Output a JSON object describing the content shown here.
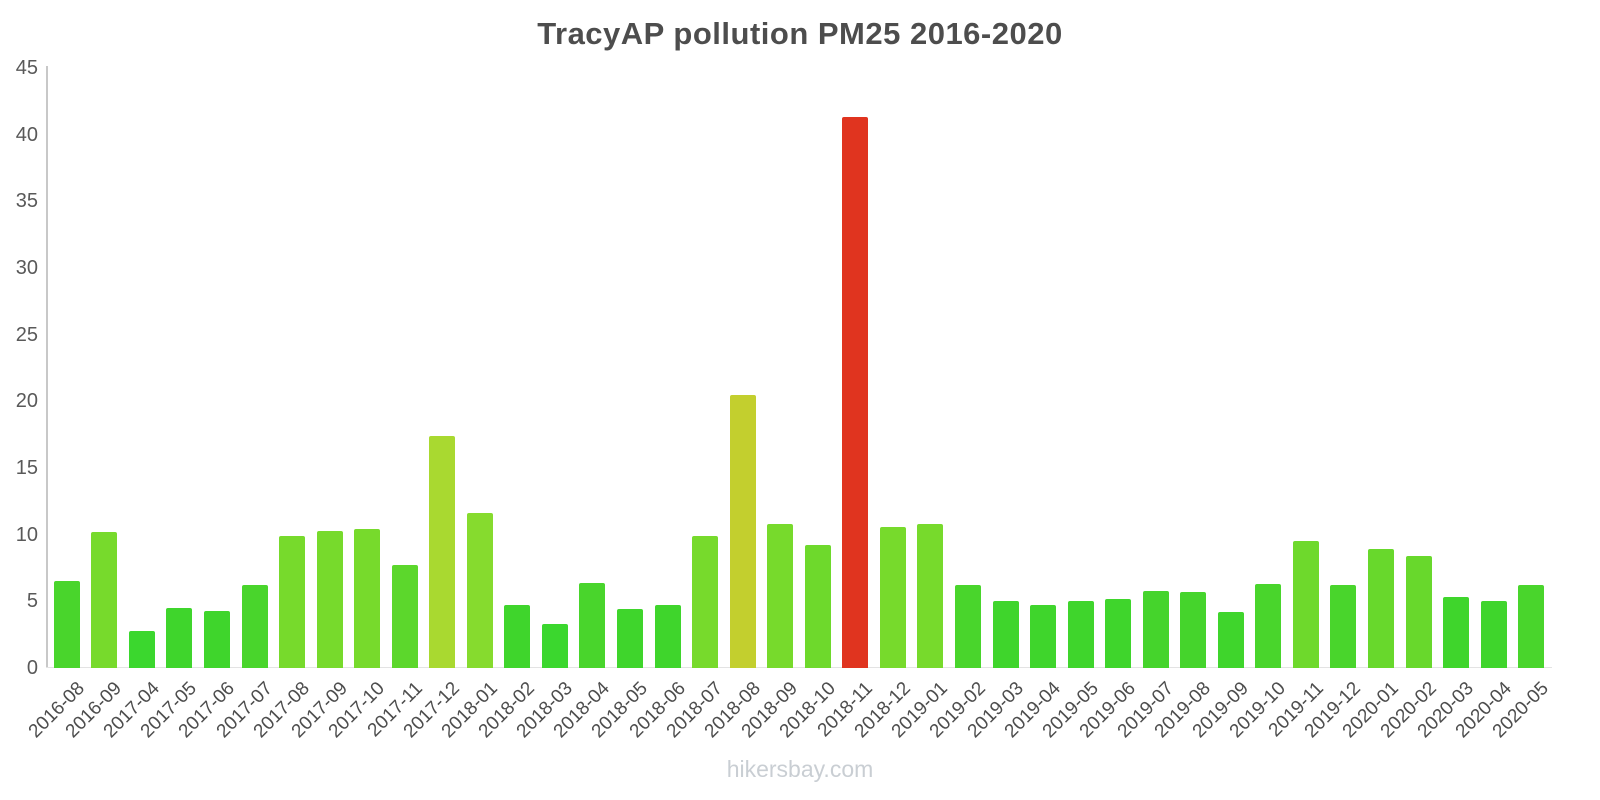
{
  "chart": {
    "title": "TracyAP pollution PM25 2016-2020",
    "watermark": "hikersbay.com"
  },
  "chart_data": {
    "type": "bar",
    "title": "TracyAP pollution PM25 2016-2020",
    "xlabel": "",
    "ylabel": "",
    "ylim": [
      0,
      45
    ],
    "yticks": [
      0,
      5,
      10,
      15,
      20,
      25,
      30,
      35,
      40,
      45
    ],
    "grid": false,
    "legend": false,
    "categories": [
      "2016-08",
      "2016-09",
      "2017-04",
      "2017-05",
      "2017-06",
      "2017-07",
      "2017-08",
      "2017-09",
      "2017-10",
      "2017-11",
      "2017-12",
      "2018-01",
      "2018-02",
      "2018-03",
      "2018-04",
      "2018-05",
      "2018-06",
      "2018-07",
      "2018-08",
      "2018-09",
      "2018-10",
      "2018-11",
      "2018-12",
      "2019-01",
      "2019-02",
      "2019-03",
      "2019-04",
      "2019-05",
      "2019-06",
      "2019-07",
      "2019-08",
      "2019-09",
      "2019-10",
      "2019-11",
      "2019-12",
      "2020-01",
      "2020-02",
      "2020-03",
      "2020-04",
      "2020-05"
    ],
    "values": [
      6.5,
      10.2,
      2.8,
      4.5,
      4.3,
      6.2,
      9.9,
      10.3,
      10.4,
      7.7,
      17.4,
      11.6,
      4.7,
      3.3,
      6.4,
      4.4,
      4.7,
      9.9,
      20.5,
      10.8,
      9.2,
      41.3,
      10.6,
      10.8,
      6.2,
      5.0,
      4.7,
      5.0,
      5.2,
      5.8,
      5.7,
      4.2,
      6.3,
      9.5,
      6.2,
      8.9,
      8.4,
      5.3,
      5.0,
      6.2
    ],
    "colors": [
      "#49d52c",
      "#77da2c",
      "#3bd72e",
      "#3fd52c",
      "#3fd52c",
      "#49d52c",
      "#77da2c",
      "#77da2c",
      "#77da2c",
      "#5cd72c",
      "#a9d930",
      "#86db2e",
      "#3fd52c",
      "#3bd72e",
      "#49d52c",
      "#3fd52c",
      "#3fd52c",
      "#77da2c",
      "#c3cf2e",
      "#77da2c",
      "#6ed92c",
      "#e0341f",
      "#77da2c",
      "#77da2c",
      "#49d52c",
      "#3fd52c",
      "#3fd52c",
      "#3fd52c",
      "#3fd52c",
      "#45d42c",
      "#45d42c",
      "#3fd52c",
      "#49d52c",
      "#6ed92c",
      "#49d52c",
      "#68d82c",
      "#68d82c",
      "#3fd52c",
      "#3fd52c",
      "#49d52c"
    ],
    "highlight": {
      "category": "2018-11",
      "value": 41.3,
      "color": "#e0341f"
    },
    "axis_color": "#c8c8c8",
    "title_color": "#4d4d4d",
    "tick_color": "#595959",
    "watermark_color": "#c9ced3"
  }
}
